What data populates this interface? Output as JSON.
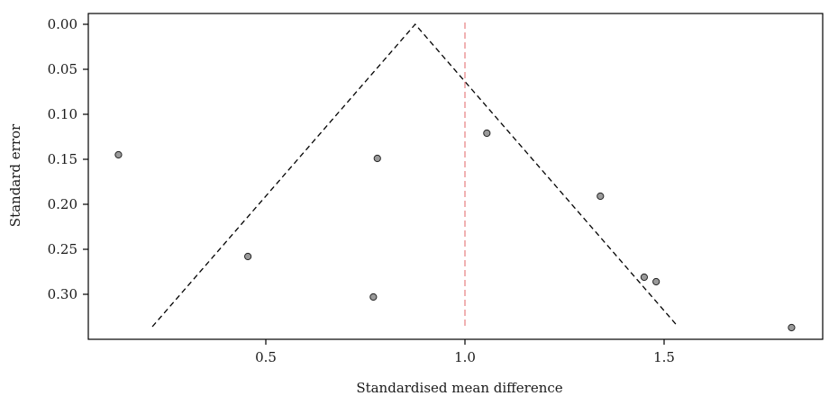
{
  "chart_data": {
    "type": "scatter",
    "title": "",
    "xlabel": "Standardised mean difference",
    "ylabel": "Standard error",
    "x_ticks": [
      0.5,
      1.0,
      1.5
    ],
    "x_tick_labels": [
      "0.5",
      "1.0",
      "1.5"
    ],
    "y_ticks": [
      0.0,
      0.05,
      0.1,
      0.15,
      0.2,
      0.25,
      0.3
    ],
    "y_tick_labels": [
      "0.00",
      "0.05",
      "0.10",
      "0.15",
      "0.20",
      "0.25",
      "0.30"
    ],
    "xlim": [
      0.09,
      1.9
    ],
    "ylim": [
      0.0,
      0.34
    ],
    "y_inverted": true,
    "grid": false,
    "points": [
      {
        "x": 0.13,
        "y": 0.145
      },
      {
        "x": 0.455,
        "y": 0.258
      },
      {
        "x": 0.77,
        "y": 0.303
      },
      {
        "x": 0.78,
        "y": 0.149
      },
      {
        "x": 1.055,
        "y": 0.121
      },
      {
        "x": 1.34,
        "y": 0.191
      },
      {
        "x": 1.45,
        "y": 0.281
      },
      {
        "x": 1.48,
        "y": 0.286
      },
      {
        "x": 1.82,
        "y": 0.337
      }
    ],
    "funnel": {
      "apex_x": 0.875,
      "apex_y": 0.0,
      "base_y": 0.336,
      "left_x": 0.215,
      "right_x": 1.535
    },
    "reference_line_x": 1.0,
    "colors": {
      "points_fill": "#9a9a9a",
      "points_stroke": "#222222",
      "funnel": "#000000",
      "reference_line": "#e8888a",
      "axis": "#000000"
    }
  }
}
